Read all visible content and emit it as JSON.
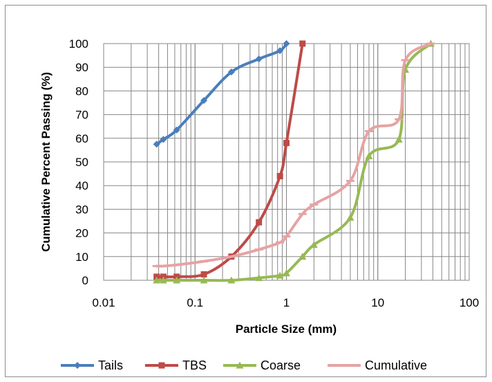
{
  "chart_data": {
    "type": "line",
    "xscale": "log",
    "xlim": [
      0.01,
      100
    ],
    "ylim": [
      0,
      100
    ],
    "xlabel": "Particle Size (mm)",
    "ylabel": "Cumulative Percent Passing (%)",
    "x_ticks": [
      "0.01",
      "0.1",
      "1",
      "10",
      "100"
    ],
    "y_ticks": [
      "0",
      "10",
      "20",
      "30",
      "40",
      "50",
      "60",
      "70",
      "80",
      "90",
      "100"
    ],
    "grid": true,
    "legend_position": "bottom",
    "series": [
      {
        "name": "Tails",
        "color": "#4A7EBB",
        "marker": "diamond",
        "x": [
          0.038,
          0.045,
          0.063,
          0.125,
          0.25,
          0.5,
          0.85,
          1.0
        ],
        "y": [
          57.5,
          59.5,
          63.5,
          76,
          88,
          93.5,
          97,
          100
        ]
      },
      {
        "name": "TBS",
        "color": "#BE4B48",
        "marker": "square",
        "x": [
          0.038,
          0.045,
          0.063,
          0.125,
          0.25,
          0.5,
          0.85,
          1.0,
          1.5
        ],
        "y": [
          1.5,
          1.5,
          1.5,
          2.5,
          10,
          24.5,
          44,
          58,
          100
        ]
      },
      {
        "name": "Coarse",
        "color": "#98B954",
        "marker": "triangle",
        "x": [
          0.038,
          0.045,
          0.063,
          0.125,
          0.25,
          0.5,
          0.85,
          1.0,
          1.5,
          2.0,
          5.0,
          8.0,
          17.0,
          20.0,
          38.0
        ],
        "y": [
          0,
          0,
          0,
          0,
          0,
          1,
          2,
          3,
          10,
          15,
          26.5,
          52.5,
          59.5,
          89,
          100
        ]
      },
      {
        "name": "Cumulative",
        "color": "#E6A3A3",
        "marker": "dash",
        "x": [
          0.038,
          0.045,
          0.063,
          0.125,
          0.25,
          0.5,
          0.85,
          1.0,
          1.5,
          2.0,
          5.0,
          8.0,
          17.0,
          20.0,
          38.0
        ],
        "y": [
          6,
          6,
          6.5,
          8,
          10,
          13,
          16,
          18.5,
          28,
          32,
          42,
          63,
          68,
          93,
          100
        ]
      }
    ]
  }
}
